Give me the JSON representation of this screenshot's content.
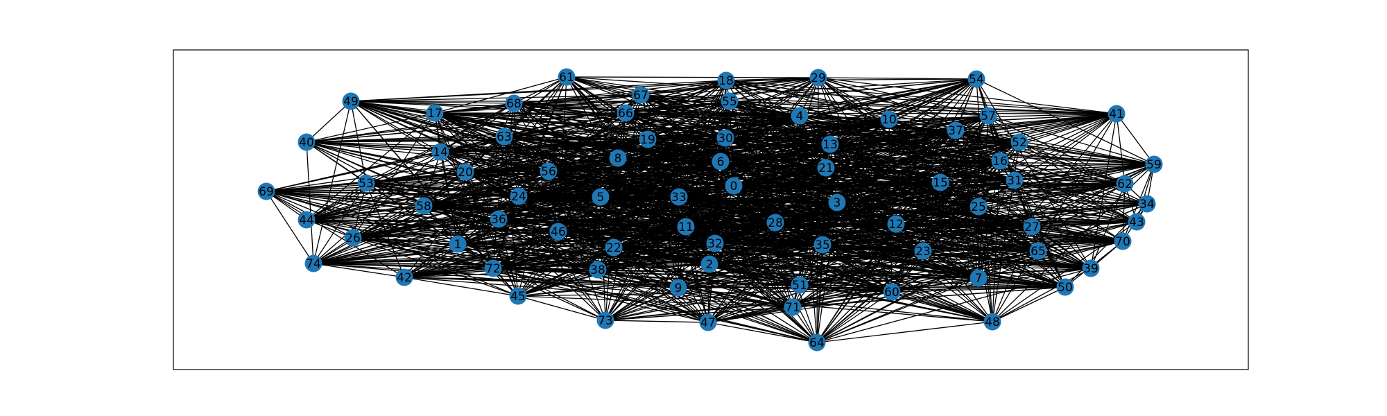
{
  "graph": {
    "node_color": "#1f77b4",
    "edge_color": "#000000",
    "frame_color": "#000000",
    "edge_rule": "dense graph; every node links to many others across the whole layout",
    "nodes": [
      "0",
      "1",
      "2",
      "3",
      "4",
      "5",
      "6",
      "7",
      "8",
      "9",
      "10",
      "11",
      "12",
      "13",
      "14",
      "15",
      "16",
      "17",
      "18",
      "19",
      "20",
      "21",
      "22",
      "23",
      "24",
      "25",
      "26",
      "27",
      "28",
      "29",
      "30",
      "31",
      "32",
      "33",
      "34",
      "35",
      "36",
      "37",
      "38",
      "39",
      "40",
      "41",
      "42",
      "43",
      "44",
      "45",
      "46",
      "47",
      "48",
      "49",
      "50",
      "51",
      "52",
      "53",
      "54",
      "55",
      "56",
      "57",
      "58",
      "59",
      "60",
      "61",
      "62",
      "63",
      "64",
      "65",
      "66",
      "67",
      "68",
      "69",
      "70",
      "71",
      "72",
      "73",
      "74"
    ]
  }
}
